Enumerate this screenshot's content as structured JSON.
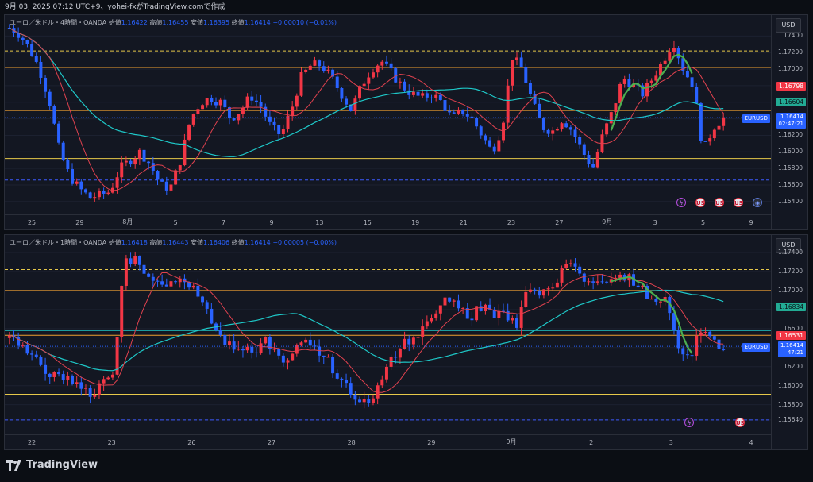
{
  "caption": "9月 03, 2025 07:12 UTC+9、yohei-fxがTradingView.comで作成",
  "currency": "USD",
  "panes": [
    {
      "id": "pane1",
      "legend": {
        "symbol": "ユーロ／米ドル・4時間・OANDA",
        "open_label": "始値",
        "open": "1.16422",
        "high_label": "高値",
        "high": "1.16455",
        "low_label": "安値",
        "low": "1.16395",
        "close_label": "終値",
        "close": "1.16414",
        "change": "−0.00010 (−0.01%)"
      },
      "price_ticks": [
        "1.17400",
        "1.17200",
        "1.17000",
        "1.16800",
        "1.16600",
        "1.16400",
        "1.16200",
        "1.16000",
        "1.15800",
        "1.15600",
        "1.15400"
      ],
      "price_min": 1.1535,
      "price_max": 1.175,
      "badges": [
        {
          "text": "1.16798",
          "price": 1.16798,
          "color": "red"
        },
        {
          "text": "1.16604",
          "price": 1.16604,
          "color": "cyan"
        }
      ],
      "last_price": {
        "symbol": "EURUSD",
        "price_text": "1.16414",
        "countdown": "02:47:21",
        "price": 1.16414
      },
      "hlines": [
        {
          "price": 1.1722,
          "color": "#e6c84a",
          "dash": true
        },
        {
          "price": 1.1702,
          "color": "#f0a030",
          "dash": false
        },
        {
          "price": 1.165,
          "color": "#f0a030",
          "dash": false
        },
        {
          "price": 1.1592,
          "color": "#e6c84a",
          "dash": false
        },
        {
          "price": 1.1566,
          "color": "#3d5afe",
          "dash": true
        }
      ],
      "dates": [
        "25",
        "29",
        "8月",
        "5",
        "7",
        "9",
        "13",
        "15",
        "19",
        "21",
        "23",
        "27",
        "9月",
        "3",
        "5",
        "9"
      ],
      "events": [
        {
          "type": "flash",
          "symbol": "ϟ"
        },
        {
          "type": "flag",
          "symbol": "US"
        },
        {
          "type": "flag",
          "symbol": "US"
        },
        {
          "type": "flag",
          "symbol": "US"
        },
        {
          "type": "dot",
          "symbol": "◉"
        }
      ]
    },
    {
      "id": "pane2",
      "legend": {
        "symbol": "ユーロ／米ドル・1時間・OANDA",
        "open_label": "始値",
        "open": "1.16418",
        "high_label": "高値",
        "high": "1.16443",
        "low_label": "安値",
        "low": "1.16406",
        "close_label": "終値",
        "close": "1.16414",
        "change": "−0.00005 (−0.00%)"
      },
      "price_ticks": [
        "1.17400",
        "1.17200",
        "1.17000",
        "1.16800",
        "1.16600",
        "1.16400",
        "1.16200",
        "1.16000",
        "1.15800",
        "1.15640"
      ],
      "price_min": 1.1558,
      "price_max": 1.1745,
      "badges": [
        {
          "text": "1.16834",
          "price": 1.16834,
          "color": "cyan"
        },
        {
          "text": "1.16531",
          "price": 1.16531,
          "color": "red"
        }
      ],
      "last_price": {
        "symbol": "EURUSD",
        "price_text": "1.16414",
        "countdown": "47:21",
        "price": 1.16414
      },
      "hlines": [
        {
          "price": 1.1722,
          "color": "#e6c84a",
          "dash": true
        },
        {
          "price": 1.17,
          "color": "#f0a030",
          "dash": false
        },
        {
          "price": 1.1658,
          "color": "#1ec8c8",
          "dash": false
        },
        {
          "price": 1.1653,
          "color": "#f0a030",
          "dash": false
        },
        {
          "price": 1.1591,
          "color": "#e6c84a",
          "dash": false
        },
        {
          "price": 1.1564,
          "color": "#3d5afe",
          "dash": true
        }
      ],
      "dates": [
        "22",
        "23",
        "26",
        "27",
        "28",
        "29",
        "9月",
        "2",
        "3",
        "4"
      ],
      "events": [
        {
          "type": "flash",
          "symbol": "ϟ"
        },
        {
          "type": "flag",
          "symbol": "US"
        }
      ]
    }
  ],
  "footer": {
    "brand": "TradingView"
  },
  "colors": {
    "up": "#f23645",
    "down": "#2962ff",
    "ma_fast": "#e0424f",
    "ma_slow": "#1ec8c8",
    "trend": "#4caf50"
  }
}
